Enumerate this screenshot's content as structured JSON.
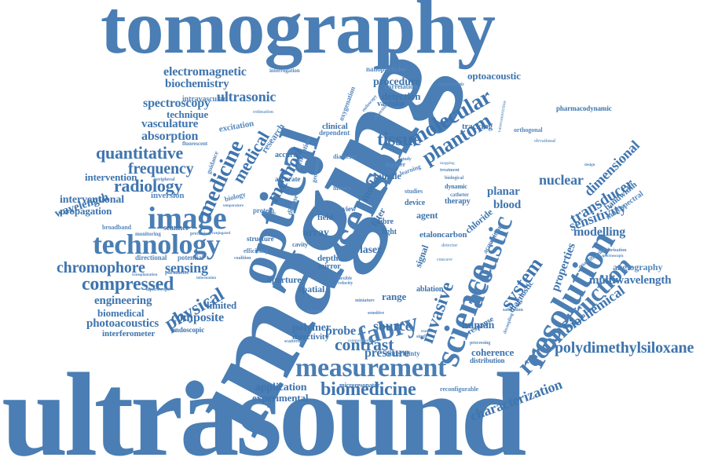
{
  "cloud": {
    "accent_color": "#4a7eb4",
    "words": {
      "tomography": "tomography",
      "ultrasound": "ultrasound",
      "imaging": "imaging",
      "optical": "optical",
      "sensor": "sensor",
      "image": "image",
      "technology": "technology",
      "measurement": "measurement",
      "science": "science",
      "resolution": "resolution",
      "reconstruction": "reconstruction",
      "acoustic": "acoustic",
      "fabry": "fabry",
      "invasive": "invasive",
      "system": "system",
      "medicine": "medicine",
      "molecular": "molecular",
      "phantom": "phantom",
      "tissue": "tissue",
      "method": "method",
      "medical": "medical",
      "quantitative": "quantitative",
      "frequency": "frequency",
      "radiology": "radiology",
      "compressed": "compressed",
      "chromophore": "chromophore",
      "sensing": "sensing",
      "physical": "physical",
      "composite": "composite",
      "contrast": "contrast",
      "pressure": "pressure",
      "source": "source",
      "probe": "probe",
      "biomedicine": "biomedicine",
      "characterization": "characterization",
      "biochemical": "biochemical",
      "polydimethylsiloxane": "polydimethylsiloxane",
      "multiwavelength": "multiwavelength",
      "angiography": "angiography",
      "transducer": "transducer",
      "dimensional": "dimensional",
      "sensitivity": "sensitivity",
      "modelling": "modelling",
      "nuclear": "nuclear",
      "planar": "planar",
      "blood": "blood",
      "electromagnetic": "electromagnetic",
      "biochemistry": "biochemistry",
      "ultrasonic": "ultrasonic",
      "spectroscopy": "spectroscopy",
      "technique": "technique",
      "vasculature": "vasculature",
      "absorption": "absorption",
      "intervention": "intervention",
      "interventional": "interventional",
      "propagation": "propagation",
      "wavelength": "wavelength",
      "optoacoustic": "optoacoustic",
      "procedure": "procedure",
      "detection": "detection",
      "pharmacodynamic": "pharmacodynamic",
      "engineering": "engineering",
      "biomedical": "biomedical",
      "photoacoustics": "photoacoustics",
      "interferometer": "interferometer",
      "application": "application",
      "experimental": "experimental",
      "model": "model",
      "coherence": "coherence",
      "human": "human",
      "diagnostic": "diagnostic",
      "properties": "properties",
      "bandwidth": "bandwidth",
      "multispectral": "multispectral",
      "intravascular": "intravascular",
      "research": "research",
      "excitation": "excitation",
      "scanner": "scanner",
      "inversion": "inversion",
      "broadband": "broadband",
      "accuracy": "accuracy",
      "limited": "limited",
      "endoscopic": "endoscopic",
      "array": "array",
      "laser": "laser",
      "agent": "agent",
      "range": "range",
      "aperture": "aperture",
      "spatial": "spatial",
      "polymer": "polymer",
      "directivity": "directivity",
      "depth": "depth",
      "ablation": "ablation",
      "uncertainty": "uncertainty",
      "distribution": "distribution",
      "reconfigurable": "reconfigurable",
      "microresonator": "microresonator",
      "nanoparticles": "nanoparticles",
      "correlation": "correlation",
      "characteristic": "characteristic",
      "oxygenation": "oxygenation",
      "vascular": "vascular",
      "tracking": "tracking",
      "orthogonal": "orthogonal",
      "clinical": "clinical",
      "dependent": "dependent",
      "interrogation": "interrogation",
      "fluorescent": "fluorescent",
      "estimation": "estimation",
      "guidance": "guidance",
      "biology": "biology",
      "protein": "protein",
      "disease": "disease",
      "accurate": "accurate",
      "generation": "generation",
      "geometry": "geometry",
      "doppler": "doppler",
      "filter": "filter",
      "fibre": "fibre",
      "light": "light",
      "view": "view",
      "field": "field",
      "carbon": "carbon",
      "chloride": "chloride",
      "etalon": "etalon",
      "device": "device",
      "therapy": "therapy",
      "dynamic": "dynamic",
      "bundle": "bundle",
      "learning": "learning",
      "diameter": "diameter",
      "studies": "studies",
      "signal": "signal",
      "mirror": "mirror",
      "cavity": "cavity",
      "structure": "structure",
      "efficiency": "efficiency",
      "directional": "directional",
      "potential": "potential",
      "parameter": "parameter",
      "information": "information",
      "monitoring": "monitoring",
      "preclinical": "preclinical",
      "peripheral": "peripheral",
      "temperature": "temperature",
      "coalition": "coalition",
      "transplantation": "transplantation",
      "laparoscopic": "laparoscopic",
      "acquisition": "acquisition",
      "response": "response",
      "saturation": "saturation",
      "decoupling": "decoupling",
      "regularization": "regularization",
      "spectroscopic": "spectroscopic",
      "quantification": "quantification",
      "elevational": "elevational",
      "concave": "concave",
      "scattering": "scattering",
      "clathrate": "clathrate",
      "miniature": "miniature",
      "velocity": "velocity",
      "conjugated": "conjugated",
      "modality": "modality",
      "history": "history",
      "mapping": "mapping",
      "treatment": "treatment",
      "biological": "biological",
      "catheter": "catheter",
      "dissection": "dissection",
      "endoscopy": "endoscopy",
      "study": "study",
      "vasoconstriction": "vasoconstriction",
      "computational": "computational",
      "sensitive": "sensitive",
      "flexible": "flexible",
      "detector": "detector",
      "processing": "processing",
      "design": "design",
      "single": "single",
      "transient": "transient"
    }
  }
}
